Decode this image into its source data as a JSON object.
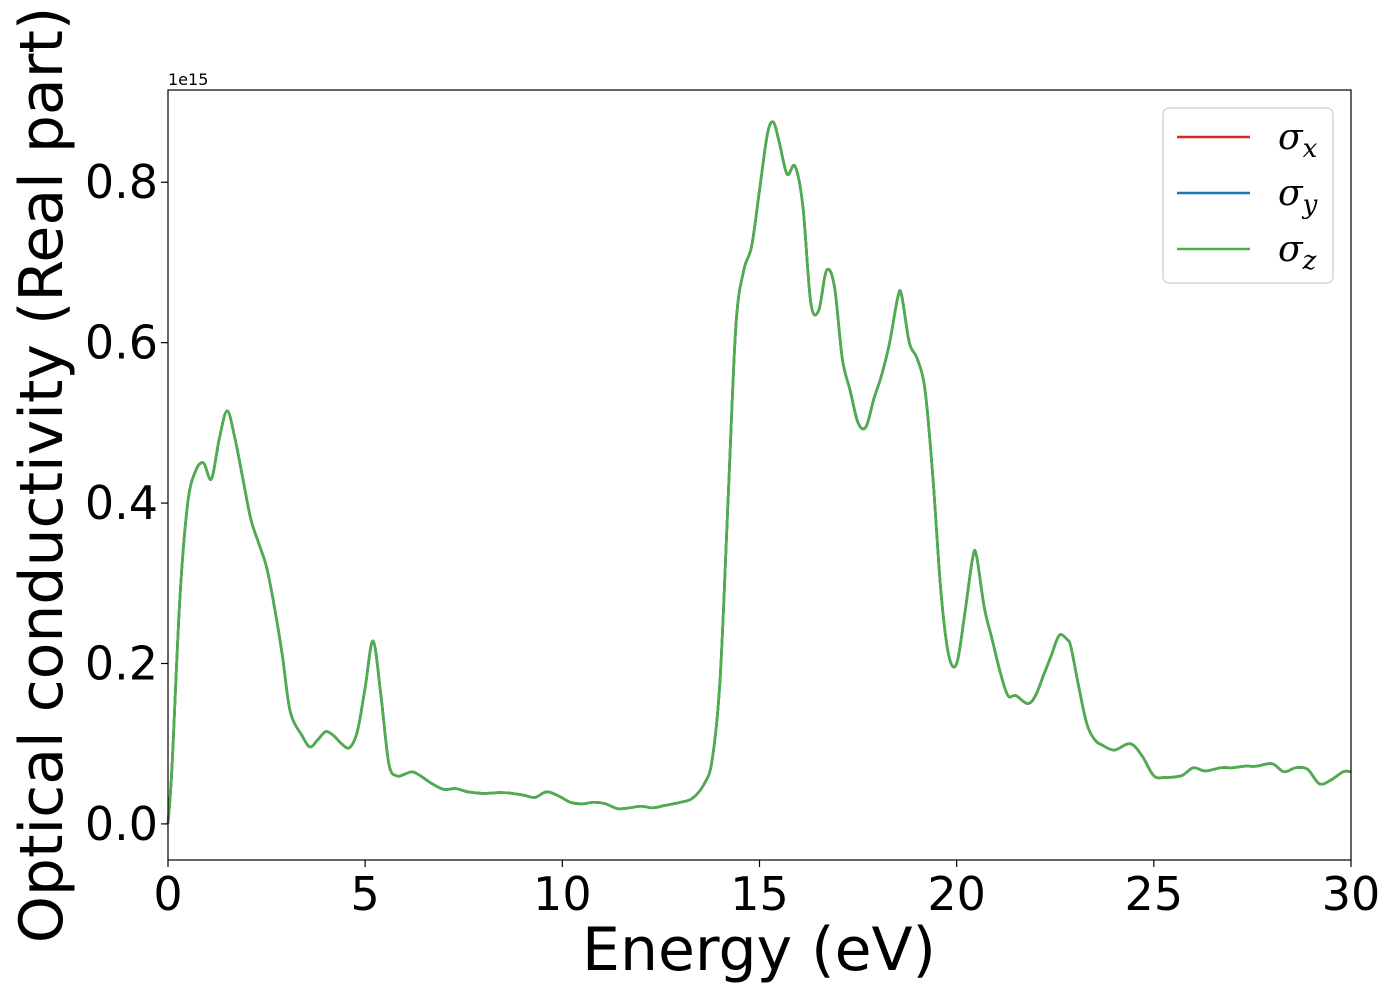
{
  "chart_data": {
    "type": "line",
    "title": "",
    "xlabel": "Energy (eV)",
    "ylabel": "Optical conductivity (Real part)",
    "y_offset_text": "1e15",
    "xlim": [
      0,
      30
    ],
    "ylim": [
      -0.045,
      0.915
    ],
    "xticks": [
      0,
      5,
      10,
      15,
      20,
      25,
      30
    ],
    "xtick_labels": [
      "0",
      "5",
      "10",
      "15",
      "20",
      "25",
      "30"
    ],
    "yticks": [
      0.0,
      0.2,
      0.4,
      0.6,
      0.8
    ],
    "ytick_labels": [
      "0.0",
      "0.2",
      "0.4",
      "0.6",
      "0.8"
    ],
    "grid": false,
    "legend_position": "top-right",
    "series": [
      {
        "name": "σx",
        "symbol": "σ",
        "subscript": "x",
        "color": "#d62728"
      },
      {
        "name": "σy",
        "symbol": "σ",
        "subscript": "y",
        "color": "#1f77b4"
      },
      {
        "name": "σz",
        "symbol": "σ",
        "subscript": "z",
        "color": "#4daf4a"
      }
    ],
    "x": [
      0,
      0.1,
      0.3,
      0.5,
      0.7,
      0.9,
      1.1,
      1.3,
      1.5,
      1.7,
      1.9,
      2.1,
      2.3,
      2.5,
      2.7,
      2.9,
      3.1,
      3.4,
      3.6,
      3.8,
      4.0,
      4.2,
      4.4,
      4.6,
      4.8,
      5.0,
      5.2,
      5.4,
      5.6,
      5.8,
      6.0,
      6.2,
      6.4,
      6.7,
      7.0,
      7.3,
      7.6,
      8.0,
      8.5,
      9.0,
      9.3,
      9.6,
      9.9,
      10.2,
      10.5,
      10.8,
      11.1,
      11.4,
      11.7,
      12.0,
      12.3,
      12.6,
      13.0,
      13.3,
      13.6,
      13.8,
      14.0,
      14.2,
      14.4,
      14.6,
      14.8,
      15.0,
      15.2,
      15.35,
      15.5,
      15.7,
      15.9,
      16.1,
      16.3,
      16.5,
      16.7,
      16.9,
      17.1,
      17.3,
      17.5,
      17.7,
      17.9,
      18.1,
      18.3,
      18.5,
      18.6,
      18.8,
      19.0,
      19.2,
      19.4,
      19.6,
      19.8,
      20.0,
      20.2,
      20.4,
      20.5,
      20.7,
      20.9,
      21.1,
      21.3,
      21.5,
      21.8,
      22.0,
      22.2,
      22.4,
      22.6,
      22.8,
      22.9,
      23.1,
      23.3,
      23.5,
      23.7,
      24.0,
      24.4,
      24.7,
      25.0,
      25.3,
      25.7,
      26.0,
      26.3,
      26.7,
      27.0,
      27.3,
      27.6,
      28.0,
      28.3,
      28.6,
      28.9,
      29.2,
      29.5,
      29.8,
      30.0
    ],
    "values": [
      0.0,
      0.07,
      0.28,
      0.4,
      0.44,
      0.45,
      0.43,
      0.48,
      0.515,
      0.48,
      0.43,
      0.38,
      0.35,
      0.32,
      0.27,
      0.21,
      0.14,
      0.11,
      0.096,
      0.105,
      0.115,
      0.11,
      0.1,
      0.095,
      0.115,
      0.17,
      0.228,
      0.16,
      0.075,
      0.06,
      0.062,
      0.065,
      0.06,
      0.05,
      0.043,
      0.044,
      0.04,
      0.038,
      0.039,
      0.036,
      0.033,
      0.04,
      0.035,
      0.027,
      0.025,
      0.027,
      0.025,
      0.019,
      0.02,
      0.022,
      0.02,
      0.023,
      0.027,
      0.032,
      0.05,
      0.08,
      0.18,
      0.4,
      0.62,
      0.69,
      0.72,
      0.79,
      0.86,
      0.875,
      0.85,
      0.81,
      0.82,
      0.77,
      0.65,
      0.64,
      0.69,
      0.67,
      0.58,
      0.54,
      0.5,
      0.495,
      0.53,
      0.56,
      0.6,
      0.655,
      0.66,
      0.6,
      0.58,
      0.54,
      0.43,
      0.29,
      0.21,
      0.2,
      0.26,
      0.33,
      0.335,
      0.27,
      0.23,
      0.19,
      0.16,
      0.16,
      0.15,
      0.16,
      0.185,
      0.21,
      0.235,
      0.23,
      0.22,
      0.17,
      0.125,
      0.105,
      0.098,
      0.092,
      0.1,
      0.085,
      0.06,
      0.058,
      0.06,
      0.07,
      0.066,
      0.07,
      0.07,
      0.072,
      0.072,
      0.075,
      0.065,
      0.07,
      0.068,
      0.05,
      0.055,
      0.065,
      0.065
    ]
  }
}
